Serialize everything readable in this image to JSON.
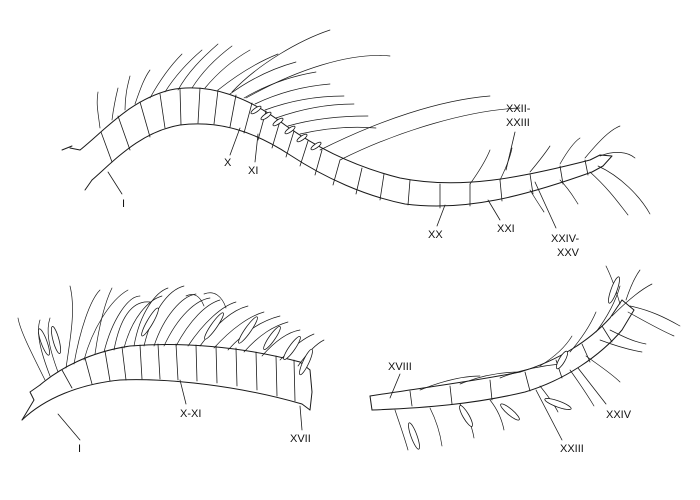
{
  "figure": {
    "panels": [
      {
        "id": "panel-top",
        "labels": [
          "I",
          "X",
          "XI",
          "XX",
          "XXI",
          "XXII-",
          "XXIII",
          "XXIV-",
          "XXV"
        ]
      },
      {
        "id": "panel-bottom-left",
        "labels": [
          "I",
          "X-XI",
          "XVII"
        ]
      },
      {
        "id": "panel-bottom-right",
        "labels": [
          "XVIII",
          "XXIII",
          "XXIV"
        ]
      }
    ]
  }
}
